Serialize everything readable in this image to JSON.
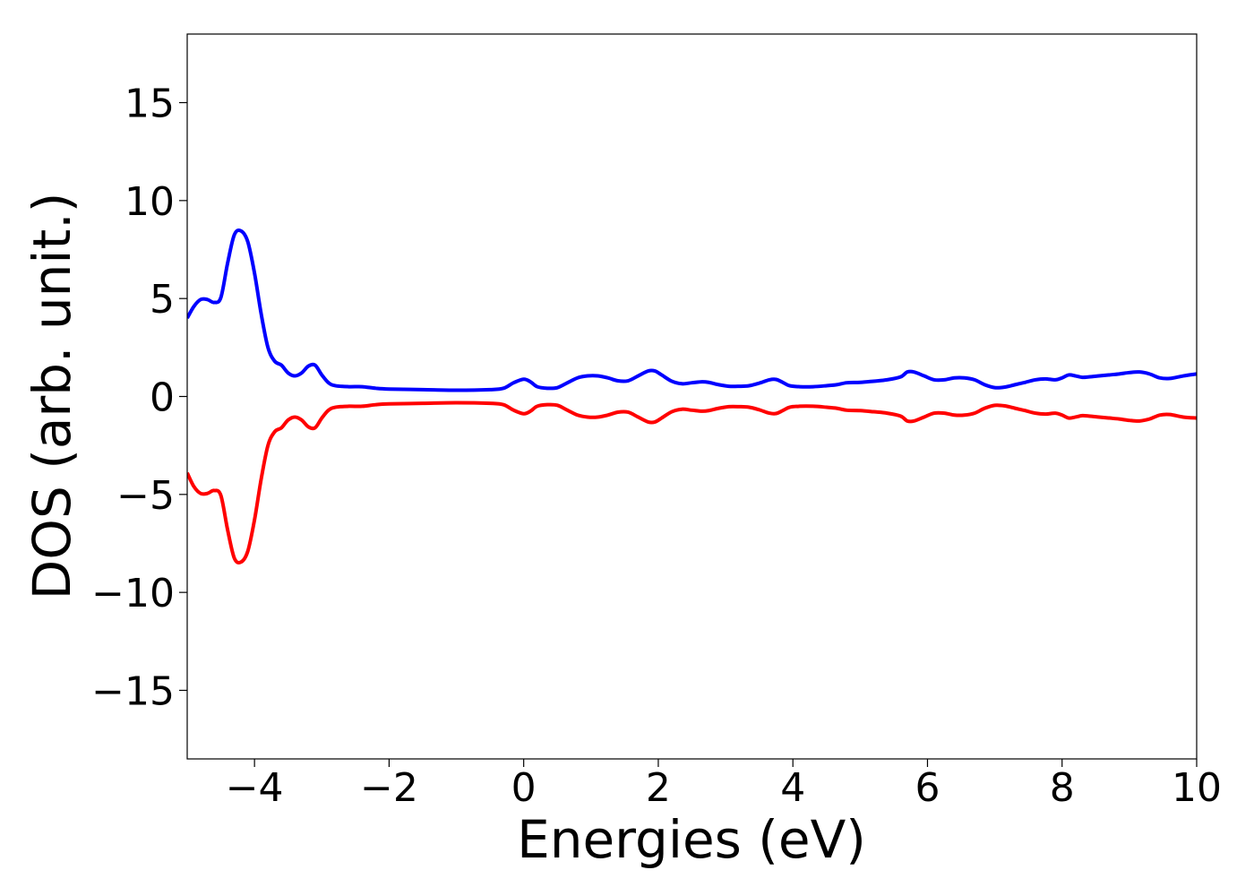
{
  "chart_data": {
    "type": "line",
    "title": "",
    "xlabel": "Energies (eV)",
    "ylabel": "DOS (arb. unit.)",
    "xlim": [
      -5,
      10
    ],
    "ylim": [
      -18.5,
      18.5
    ],
    "xticks": [
      -4,
      -2,
      0,
      2,
      4,
      6,
      8,
      10
    ],
    "yticks": [
      -15,
      -10,
      -5,
      0,
      5,
      10,
      15
    ],
    "xtick_labels": [
      "−4",
      "−2",
      "0",
      "2",
      "4",
      "6",
      "8",
      "10"
    ],
    "ytick_labels": [
      "−15",
      "−10",
      "−5",
      "0",
      "5",
      "10",
      "15"
    ],
    "grid": false,
    "legend": "none",
    "series": [
      {
        "color": "#0000ff",
        "x": [
          -5.0,
          -4.9,
          -4.8,
          -4.7,
          -4.6,
          -4.5,
          -4.4,
          -4.3,
          -4.2,
          -4.1,
          -4.0,
          -3.9,
          -3.8,
          -3.7,
          -3.6,
          -3.5,
          -3.4,
          -3.3,
          -3.2,
          -3.1,
          -3.0,
          -2.9,
          -2.8,
          -2.6,
          -2.4,
          -2.2,
          -2.0,
          -1.5,
          -1.0,
          -0.5,
          -0.3,
          -0.15,
          0.0,
          0.1,
          0.2,
          0.35,
          0.5,
          0.65,
          0.8,
          0.95,
          1.1,
          1.25,
          1.4,
          1.55,
          1.7,
          1.85,
          1.95,
          2.05,
          2.2,
          2.35,
          2.5,
          2.65,
          2.75,
          2.9,
          3.05,
          3.2,
          3.35,
          3.5,
          3.65,
          3.75,
          3.85,
          3.95,
          4.1,
          4.3,
          4.5,
          4.65,
          4.8,
          5.0,
          5.2,
          5.4,
          5.6,
          5.7,
          5.8,
          5.95,
          6.1,
          6.25,
          6.4,
          6.55,
          6.7,
          6.85,
          7.0,
          7.15,
          7.3,
          7.45,
          7.6,
          7.75,
          7.9,
          8.0,
          8.1,
          8.2,
          8.3,
          8.4,
          8.55,
          8.7,
          8.85,
          9.0,
          9.15,
          9.3,
          9.45,
          9.6,
          9.8,
          10.0
        ],
        "y": [
          4.0,
          4.6,
          4.95,
          4.95,
          4.8,
          5.05,
          6.8,
          8.25,
          8.45,
          7.9,
          6.3,
          4.2,
          2.5,
          1.8,
          1.6,
          1.2,
          1.05,
          1.2,
          1.55,
          1.6,
          1.1,
          0.7,
          0.55,
          0.5,
          0.5,
          0.42,
          0.38,
          0.35,
          0.32,
          0.35,
          0.42,
          0.7,
          0.88,
          0.75,
          0.5,
          0.42,
          0.45,
          0.7,
          0.95,
          1.05,
          1.05,
          0.95,
          0.8,
          0.8,
          1.05,
          1.3,
          1.3,
          1.1,
          0.78,
          0.65,
          0.7,
          0.75,
          0.72,
          0.6,
          0.52,
          0.52,
          0.55,
          0.68,
          0.85,
          0.87,
          0.72,
          0.55,
          0.5,
          0.5,
          0.55,
          0.6,
          0.7,
          0.72,
          0.78,
          0.85,
          1.0,
          1.25,
          1.25,
          1.05,
          0.85,
          0.85,
          0.95,
          0.95,
          0.85,
          0.6,
          0.45,
          0.48,
          0.6,
          0.72,
          0.85,
          0.9,
          0.85,
          0.95,
          1.1,
          1.05,
          0.98,
          1.0,
          1.05,
          1.1,
          1.15,
          1.22,
          1.25,
          1.15,
          0.95,
          0.92,
          1.05,
          1.15
        ]
      },
      {
        "color": "#ff0000",
        "x": [
          -5.0,
          -4.9,
          -4.8,
          -4.7,
          -4.6,
          -4.5,
          -4.4,
          -4.3,
          -4.2,
          -4.1,
          -4.0,
          -3.9,
          -3.8,
          -3.7,
          -3.6,
          -3.5,
          -3.4,
          -3.3,
          -3.2,
          -3.1,
          -3.0,
          -2.9,
          -2.8,
          -2.6,
          -2.4,
          -2.2,
          -2.0,
          -1.5,
          -1.0,
          -0.5,
          -0.3,
          -0.15,
          0.0,
          0.1,
          0.2,
          0.35,
          0.5,
          0.65,
          0.8,
          0.95,
          1.1,
          1.25,
          1.4,
          1.55,
          1.7,
          1.85,
          1.95,
          2.05,
          2.2,
          2.35,
          2.5,
          2.65,
          2.75,
          2.9,
          3.05,
          3.2,
          3.35,
          3.5,
          3.65,
          3.75,
          3.85,
          3.95,
          4.1,
          4.3,
          4.5,
          4.65,
          4.8,
          5.0,
          5.2,
          5.4,
          5.6,
          5.7,
          5.8,
          5.95,
          6.1,
          6.25,
          6.4,
          6.55,
          6.7,
          6.85,
          7.0,
          7.15,
          7.3,
          7.45,
          7.6,
          7.75,
          7.9,
          8.0,
          8.1,
          8.2,
          8.3,
          8.4,
          8.55,
          8.7,
          8.85,
          9.0,
          9.15,
          9.3,
          9.45,
          9.6,
          9.8,
          10.0
        ],
        "y": [
          -3.9,
          -4.6,
          -4.95,
          -4.95,
          -4.8,
          -5.05,
          -6.8,
          -8.25,
          -8.45,
          -7.9,
          -6.3,
          -4.2,
          -2.5,
          -1.8,
          -1.6,
          -1.2,
          -1.05,
          -1.2,
          -1.55,
          -1.6,
          -1.1,
          -0.7,
          -0.55,
          -0.5,
          -0.5,
          -0.42,
          -0.38,
          -0.35,
          -0.32,
          -0.35,
          -0.42,
          -0.7,
          -0.88,
          -0.75,
          -0.5,
          -0.42,
          -0.45,
          -0.7,
          -0.95,
          -1.05,
          -1.05,
          -0.95,
          -0.8,
          -0.8,
          -1.05,
          -1.3,
          -1.3,
          -1.1,
          -0.78,
          -0.65,
          -0.7,
          -0.75,
          -0.72,
          -0.6,
          -0.52,
          -0.52,
          -0.55,
          -0.68,
          -0.85,
          -0.87,
          -0.72,
          -0.55,
          -0.5,
          -0.5,
          -0.55,
          -0.6,
          -0.7,
          -0.72,
          -0.78,
          -0.85,
          -1.0,
          -1.25,
          -1.25,
          -1.05,
          -0.85,
          -0.85,
          -0.95,
          -0.95,
          -0.85,
          -0.6,
          -0.45,
          -0.48,
          -0.6,
          -0.72,
          -0.85,
          -0.9,
          -0.85,
          -0.95,
          -1.1,
          -1.05,
          -0.98,
          -1.0,
          -1.05,
          -1.1,
          -1.15,
          -1.22,
          -1.25,
          -1.15,
          -0.95,
          -0.92,
          -1.05,
          -1.1
        ]
      }
    ]
  }
}
